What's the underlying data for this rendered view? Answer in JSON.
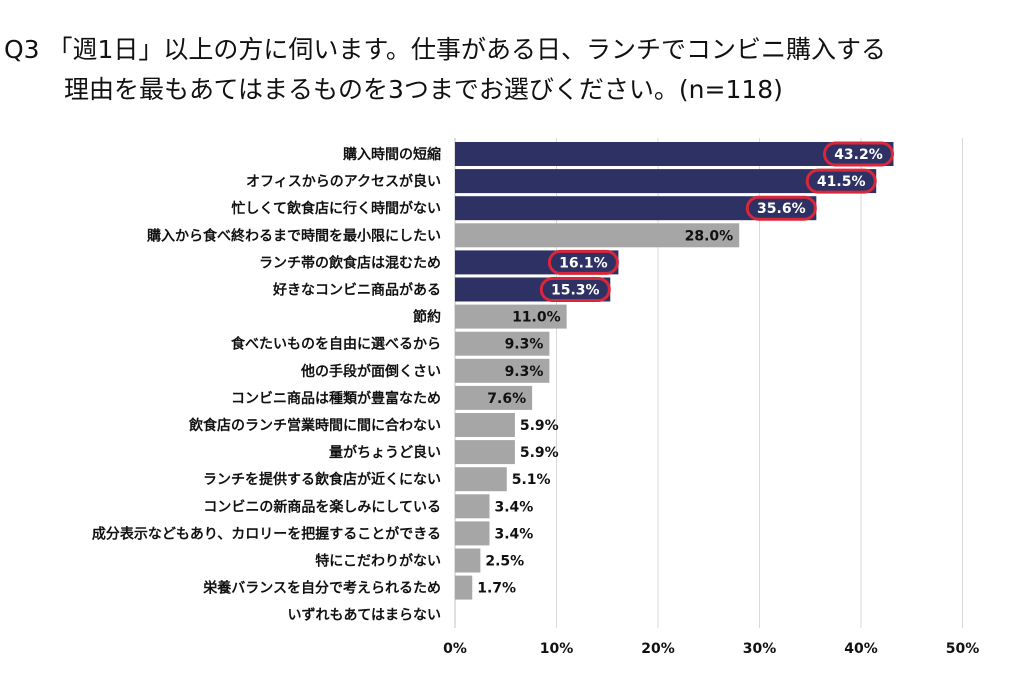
{
  "title": {
    "line1": "Q3 「週1日」以上の方に伺います。仕事がある日、ランチでコンビニ購入する",
    "line2": "理由を最もあてはまるものを3つまでお選びください。(n=118)"
  },
  "colors": {
    "highlight": "#2e3163",
    "normal": "#a6a6a6",
    "ring": "#d8263a",
    "grid": "#d9d9d9"
  },
  "chart_data": {
    "type": "bar",
    "orientation": "horizontal",
    "title": "Q3 「週1日」以上の方に伺います。仕事がある日、ランチでコンビニ購入する 理由を最もあてはまるものを3つまでお選びください。(n=118)",
    "categories": [
      "購入時間の短縮",
      "オフィスからのアクセスが良い",
      "忙しくて飲食店に行く時間がない",
      "購入から食べ終わるまで時間を最小限にしたい",
      "ランチ帯の飲食店は混むため",
      "好きなコンビニ商品がある",
      "節約",
      "食べたいものを自由に選べるから",
      "他の手段が面倒くさい",
      "コンビニ商品は種類が豊富なため",
      "飲食店のランチ営業時間に間に合わない",
      "量がちょうど良い",
      "ランチを提供する飲食店が近くにない",
      "コンビニの新商品を楽しみにしている",
      "成分表示などもあり、カロリーを把握することができる",
      "特にこだわりがない",
      "栄養バランスを自分で考えられるため",
      "いずれもあてはまらない"
    ],
    "values": [
      43.2,
      41.5,
      35.6,
      28.0,
      16.1,
      15.3,
      11.0,
      9.3,
      9.3,
      7.6,
      5.9,
      5.9,
      5.1,
      3.4,
      3.4,
      2.5,
      1.7,
      0
    ],
    "labels": [
      "43.2%",
      "41.5%",
      "35.6%",
      "28.0%",
      "16.1%",
      "15.3%",
      "11.0%",
      "9.3%",
      "9.3%",
      "7.6%",
      "5.9%",
      "5.9%",
      "5.1%",
      "3.4%",
      "3.4%",
      "2.5%",
      "1.7%",
      ""
    ],
    "highlighted": [
      true,
      true,
      true,
      false,
      true,
      true,
      false,
      false,
      false,
      false,
      false,
      false,
      false,
      false,
      false,
      false,
      false,
      false
    ],
    "xlim": [
      0,
      50
    ],
    "xticks": [
      "0%",
      "10%",
      "20%",
      "30%",
      "40%",
      "50%"
    ],
    "grid": true
  }
}
